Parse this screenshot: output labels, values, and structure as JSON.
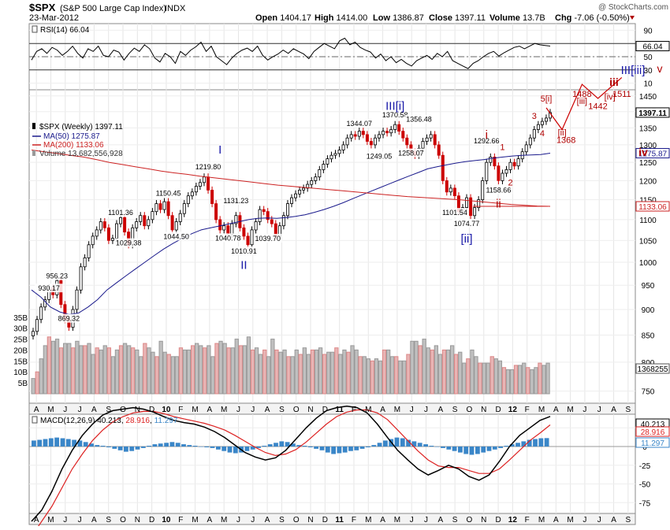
{
  "header": {
    "symbol": "$SPX",
    "name": "(S&P 500 Large Cap Index)",
    "exchange": "INDX",
    "date": "23-Mar-2012",
    "copyright": "@ StockCharts.com",
    "open_label": "Open",
    "open": "1404.17",
    "high_label": "High",
    "high": "1414.00",
    "low_label": "Low",
    "low": "1386.87",
    "close_label": "Close",
    "close": "1397.11",
    "volume_label": "Volume",
    "volume": "13.7B",
    "chg_label": "Chg",
    "chg": "-7.06 (-0.50%)"
  },
  "months": [
    "A",
    "M",
    "J",
    "J",
    "A",
    "S",
    "O",
    "N",
    "D",
    "10",
    "F",
    "M",
    "A",
    "M",
    "J",
    "J",
    "A",
    "S",
    "O",
    "N",
    "D",
    "11",
    "F",
    "M",
    "A",
    "M",
    "J",
    "J",
    "A",
    "S",
    "O",
    "N",
    "D",
    "12",
    "F",
    "M",
    "A",
    "M",
    "J",
    "J",
    "A",
    "S"
  ],
  "rsi": {
    "legend": "RSI(14) 66.04",
    "value_tag": "66.04",
    "axis_ticks": [
      90,
      70,
      50,
      30,
      10
    ],
    "overbought": 70,
    "oversold": 30,
    "values": [
      45,
      58,
      62,
      55,
      64,
      60,
      52,
      58,
      66,
      55,
      48,
      62,
      58,
      66,
      52,
      50,
      60,
      57,
      45,
      55,
      63,
      58,
      68,
      62,
      48,
      42,
      55,
      50,
      40,
      58,
      52,
      60,
      65,
      72,
      58,
      66,
      50,
      44,
      38,
      48,
      55,
      60,
      63,
      58,
      66,
      52,
      45,
      50,
      54,
      60,
      55,
      62,
      58,
      54,
      47,
      58,
      64,
      70,
      66,
      62,
      74,
      78,
      68,
      72,
      64,
      60,
      57,
      48,
      54,
      44,
      50,
      41,
      46,
      40,
      36,
      44,
      48,
      52,
      46,
      55,
      50,
      58,
      44,
      40,
      36,
      32,
      40,
      44,
      50,
      55,
      58,
      51,
      56,
      60,
      64,
      66,
      62,
      66,
      70,
      68,
      67,
      66.04
    ]
  },
  "price": {
    "legend_main": "$SPX (Weekly) 1397.11",
    "legend_ma50": "MA(50) 1275.87",
    "legend_ma200": "MA(200) 1133.06",
    "legend_volume": "Volume 13,682,556,928",
    "axis_ticks": [
      1450,
      1400,
      1350,
      1300,
      1250,
      1200,
      1150,
      1100,
      1050,
      1000,
      950,
      900,
      850,
      800,
      750
    ],
    "ylim": [
      730,
      1470
    ],
    "tags": {
      "close": "1397.11",
      "ma50": "1275.87",
      "ma200": "1133.06",
      "volume": "1368255"
    },
    "weekly_close": [
      857,
      880,
      905,
      920,
      945,
      930,
      960,
      910,
      880,
      865,
      900,
      940,
      990,
      1010,
      1040,
      1060,
      1075,
      1095,
      1080,
      1050,
      1055,
      1090,
      1105,
      1070,
      1040,
      1080,
      1095,
      1110,
      1085,
      1100,
      1120,
      1140,
      1125,
      1145,
      1110,
      1075,
      1095,
      1115,
      1140,
      1160,
      1170,
      1185,
      1195,
      1210,
      1175,
      1140,
      1100,
      1075,
      1085,
      1065,
      1090,
      1110,
      1080,
      1060,
      1040,
      1075,
      1095,
      1125,
      1120,
      1100,
      1090,
      1060,
      1085,
      1110,
      1140,
      1155,
      1165,
      1175,
      1180,
      1190,
      1200,
      1210,
      1230,
      1245,
      1260,
      1270,
      1275,
      1285,
      1300,
      1320,
      1330,
      1325,
      1340,
      1330,
      1310,
      1300,
      1320,
      1330,
      1340,
      1335,
      1345,
      1360,
      1340,
      1320,
      1300,
      1280,
      1270,
      1290,
      1310,
      1320,
      1330,
      1300,
      1270,
      1200,
      1170,
      1180,
      1160,
      1120,
      1130,
      1155,
      1110,
      1130,
      1150,
      1200,
      1250,
      1265,
      1240,
      1200,
      1220,
      1230,
      1250,
      1240,
      1260,
      1280,
      1300,
      1320,
      1345,
      1360,
      1370,
      1380,
      1397.11
    ],
    "ma50": [
      940,
      925,
      905,
      895,
      890,
      893,
      905,
      920,
      940,
      955,
      970,
      985,
      1000,
      1015,
      1030,
      1043,
      1055,
      1066,
      1075,
      1080,
      1085,
      1090,
      1095,
      1100,
      1103,
      1104,
      1103,
      1105,
      1108,
      1112,
      1118,
      1125,
      1133,
      1142,
      1152,
      1162,
      1172,
      1182,
      1192,
      1202,
      1212,
      1222,
      1232,
      1238,
      1243,
      1248,
      1252,
      1255,
      1258,
      1262,
      1265,
      1268,
      1270,
      1271,
      1272,
      1275.87
    ],
    "ma200": [
      1285,
      1280,
      1275,
      1270,
      1265,
      1258,
      1250,
      1244,
      1238,
      1232,
      1226,
      1221,
      1217,
      1212,
      1208,
      1204,
      1200,
      1196,
      1192,
      1188,
      1185,
      1182,
      1179,
      1176,
      1173,
      1170,
      1167,
      1164,
      1161,
      1158,
      1156,
      1154,
      1152,
      1150,
      1147,
      1144,
      1141,
      1138,
      1136,
      1134,
      1133.06
    ],
    "volume": [
      7,
      10,
      16,
      22,
      26,
      24,
      25,
      21,
      23,
      23,
      21,
      24,
      22,
      22,
      23,
      18,
      21,
      20,
      22,
      21,
      17,
      20,
      22,
      23,
      22,
      21,
      20,
      17,
      23,
      21,
      19,
      17,
      24,
      19,
      18,
      17,
      17,
      21,
      20,
      20,
      22,
      23,
      22,
      21,
      22,
      17,
      23,
      24,
      23,
      21,
      21,
      25,
      22,
      22,
      26,
      20,
      21,
      18,
      20,
      17,
      25,
      20,
      19,
      20,
      17,
      17,
      20,
      18,
      21,
      18,
      20,
      20,
      21,
      18,
      19,
      19,
      21,
      18,
      20,
      19,
      22,
      20,
      17,
      17,
      16,
      15,
      16,
      15,
      20,
      20,
      17,
      17,
      15,
      15,
      18,
      24,
      24,
      22,
      25,
      21,
      20,
      22,
      18,
      20,
      20,
      22,
      18,
      19,
      14,
      16,
      20,
      17,
      14,
      14,
      14,
      17,
      16,
      15,
      12,
      11,
      11,
      13,
      13,
      14,
      12,
      11,
      12,
      14,
      13,
      14
    ],
    "volume_ticks": [
      "35B",
      "30B",
      "25B",
      "20B",
      "15B",
      "10B",
      "5B"
    ],
    "value_labels": [
      {
        "text": "930.17",
        "price": 930.17,
        "week": 4
      },
      {
        "text": "956.23",
        "price": 956.23,
        "week": 6
      },
      {
        "text": "869.32",
        "price": 869.32,
        "week": 9
      },
      {
        "text": "1101.36",
        "price": 1101.36,
        "week": 22
      },
      {
        "text": "1029.38",
        "price": 1029.38,
        "week": 24
      },
      {
        "text": "1150.45",
        "price": 1150.45,
        "week": 34
      },
      {
        "text": "1044.50",
        "price": 1044.5,
        "week": 36
      },
      {
        "text": "1219.80",
        "price": 1219.8,
        "week": 44
      },
      {
        "text": "1131.23",
        "price": 1131.23,
        "week": 51
      },
      {
        "text": "1040.78",
        "price": 1040.78,
        "week": 49
      },
      {
        "text": "1010.91",
        "price": 1010.91,
        "week": 53
      },
      {
        "text": "1039.70",
        "price": 1039.7,
        "week": 59
      },
      {
        "text": "1344.07",
        "price": 1344.07,
        "week": 82
      },
      {
        "text": "1249.05",
        "price": 1249.05,
        "week": 87
      },
      {
        "text": "1370.58",
        "price": 1370.58,
        "week": 91
      },
      {
        "text": "1258.07",
        "price": 1258.07,
        "week": 95
      },
      {
        "text": "1356.48",
        "price": 1356.48,
        "week": 97
      },
      {
        "text": "1101.54",
        "price": 1101.54,
        "week": 106
      },
      {
        "text": "1074.77",
        "price": 1074.77,
        "week": 109
      },
      {
        "text": "1292.66",
        "price": 1292.66,
        "week": 114
      },
      {
        "text": "1158.66",
        "price": 1158.66,
        "week": 117
      }
    ],
    "waves": [
      {
        "text": "I",
        "color": "#1a1aa8",
        "price": 1275,
        "week": 47,
        "size": 15
      },
      {
        "text": "II",
        "color": "#1a1aa8",
        "price": 985,
        "week": 53,
        "size": 15
      },
      {
        "text": "III[i]",
        "color": "#1a1aa8",
        "price": 1405,
        "week": 91,
        "size": 15
      },
      {
        "text": "[ii]",
        "color": "#1a1aa8",
        "price": 1045,
        "week": 109,
        "size": 15
      },
      {
        "text": "i",
        "color": "#b00000",
        "price": 1318,
        "week": 114,
        "size": 15
      },
      {
        "text": "ii",
        "color": "#b00000",
        "price": 1130,
        "week": 117,
        "size": 15
      },
      {
        "text": "1",
        "color": "#b00000",
        "price": 1285,
        "week": 118,
        "size": 11
      },
      {
        "text": "2",
        "color": "#b00000",
        "price": 1187,
        "week": 120,
        "size": 11
      },
      {
        "text": "3",
        "color": "#b00000",
        "price": 1377,
        "week": 126,
        "size": 11
      },
      {
        "text": "4",
        "color": "#b00000",
        "price": 1325,
        "week": 128,
        "size": 11
      },
      {
        "text": "5[i]",
        "color": "#b00000",
        "price": 1432,
        "week": 129,
        "size": 11
      }
    ],
    "forecast": {
      "labels": [
        {
          "text": "1488",
          "color": "#b00000",
          "price": 1528,
          "week": 138
        },
        {
          "text": "[iii]",
          "color": "#b00000",
          "price": 1505,
          "week": 138
        },
        {
          "text": "1511",
          "color": "#b00000",
          "price": 1528,
          "week": 148
        },
        {
          "text": "[iv]",
          "color": "#b00000",
          "price": 1438,
          "week": 145
        },
        {
          "text": "1442",
          "color": "#b00000",
          "price": 1408,
          "week": 142
        },
        {
          "text": "[ii]",
          "color": "#b00000",
          "price": 1327,
          "week": 133
        },
        {
          "text": "1368",
          "color": "#b00000",
          "price": 1305,
          "week": 134
        }
      ]
    }
  },
  "right_annotations": {
    "wave_top": "III[iii]",
    "v": "v",
    "iii": "iii",
    "iv": "iv"
  },
  "macd": {
    "legend": "MACD(12,26,9) 40.213, 28.916, 11.297",
    "legend_macd": "40.213",
    "legend_signal": "28.916",
    "legend_hist": "11.297",
    "axis_ticks": [
      25,
      0,
      -25,
      -50,
      -75
    ],
    "tags": {
      "macd": "40.213",
      "signal": "28.916",
      "hist": "11.297"
    },
    "macd_line": [
      -100,
      -85,
      -60,
      -30,
      -5,
      15,
      30,
      42,
      48,
      50,
      52,
      50,
      46,
      40,
      35,
      32,
      30,
      26,
      20,
      12,
      2,
      -8,
      -14,
      -18,
      -15,
      -5,
      10,
      25,
      38,
      48,
      52,
      54,
      52,
      45,
      30,
      12,
      -5,
      -18,
      -30,
      -38,
      -32,
      -25,
      -30,
      -40,
      -45,
      -38,
      -20,
      0,
      15,
      25,
      35,
      40.213
    ],
    "signal_line": [
      -120,
      -100,
      -80,
      -55,
      -30,
      -10,
      8,
      22,
      33,
      40,
      45,
      47,
      47,
      44,
      40,
      37,
      34,
      31,
      27,
      22,
      15,
      7,
      -1,
      -8,
      -12,
      -10,
      -4,
      6,
      18,
      30,
      40,
      46,
      49,
      49,
      45,
      36,
      22,
      8,
      -6,
      -18,
      -26,
      -28,
      -28,
      -32,
      -36,
      -36,
      -30,
      -18,
      -5,
      8,
      18,
      28.916
    ],
    "hist_values": [
      8,
      9,
      10,
      11,
      12,
      11,
      10,
      9,
      8,
      6,
      4,
      2,
      1,
      -1,
      -3,
      -5,
      -7,
      -6,
      -4,
      -2,
      1,
      3,
      4,
      5,
      6,
      5,
      3,
      2,
      1,
      0,
      -1,
      -2,
      -4,
      -6,
      -8,
      -9,
      -8,
      -6,
      -4,
      -2,
      1,
      3,
      5,
      7,
      6,
      4,
      2,
      1,
      -1,
      -3,
      -5,
      -8,
      -10,
      -9,
      -8,
      -6,
      -5,
      -3,
      -1,
      2,
      5,
      8,
      10,
      12,
      11,
      9,
      7,
      5,
      3,
      1,
      0,
      -2,
      -4,
      -6,
      -8,
      -10,
      -11,
      -10,
      -8,
      -6,
      -4,
      -2,
      1,
      3,
      5,
      7,
      9,
      10,
      11,
      11.297
    ]
  },
  "colors": {
    "up": "#000000",
    "down": "#cc0000",
    "ma50": "#1a1a8c",
    "ma200": "#cc2222",
    "vol_up": "#c0c0c0",
    "vol_down": "#e8b4b4",
    "macd": "#000000",
    "signal": "#dd2222",
    "hist": "#3a86c8",
    "wave_blue": "#1a1aa8",
    "wave_red": "#b00000"
  }
}
